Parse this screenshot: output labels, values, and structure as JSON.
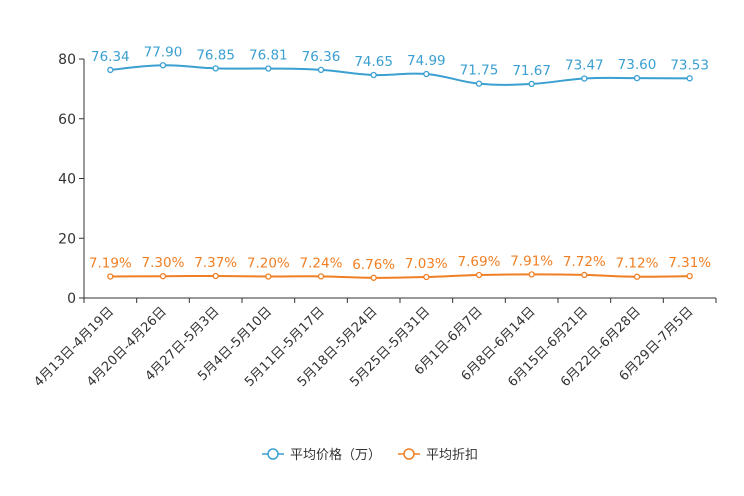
{
  "chart_data": {
    "type": "line",
    "title": "",
    "xlabel": "",
    "ylabel": "",
    "ylim": [
      0,
      80
    ],
    "yticks": [
      0,
      20,
      40,
      60,
      80
    ],
    "grid": false,
    "legend_position": "bottom-center",
    "categories": [
      "4月13日-4月19日",
      "4月20日-4月26日",
      "4月27日-5月3日",
      "5月4日-5月10日",
      "5月11日-5月17日",
      "5月18日-5月24日",
      "5月25日-5月31日",
      "6月1日-6月7日",
      "6月8日-6月14日",
      "6月15日-6月21日",
      "6月22日-6月28日",
      "6月29日-7月5日"
    ],
    "series": [
      {
        "name": "平均价格（万）",
        "color": "#3a9fd1",
        "values": [
          76.34,
          77.9,
          76.85,
          76.81,
          76.36,
          74.65,
          74.99,
          71.75,
          71.67,
          73.47,
          73.6,
          73.53
        ],
        "labels": [
          "76.34",
          "77.90",
          "76.85",
          "76.81",
          "76.36",
          "74.65",
          "74.99",
          "71.75",
          "71.67",
          "73.47",
          "73.60",
          "73.53"
        ]
      },
      {
        "name": "平均折扣",
        "color": "#f07f24",
        "values": [
          7.19,
          7.3,
          7.37,
          7.2,
          7.24,
          6.76,
          7.03,
          7.69,
          7.91,
          7.72,
          7.12,
          7.31
        ],
        "labels": [
          "7.19%",
          "7.30%",
          "7.37%",
          "7.20%",
          "7.24%",
          "6.76%",
          "7.03%",
          "7.69%",
          "7.91%",
          "7.72%",
          "7.12%",
          "7.31%"
        ]
      }
    ]
  }
}
